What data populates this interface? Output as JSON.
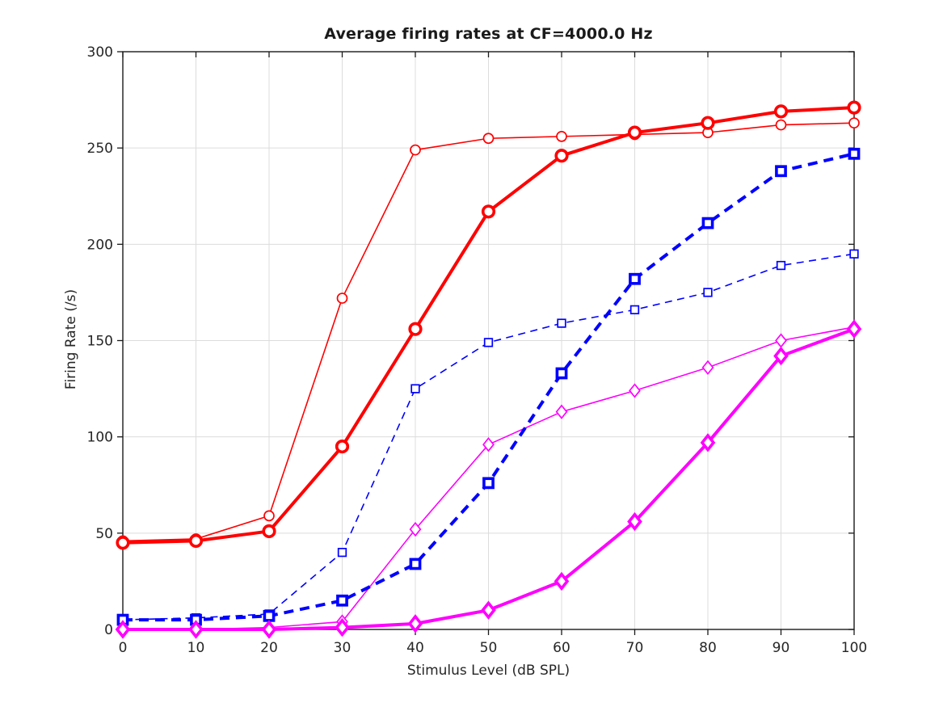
{
  "figure": {
    "title": "Average firing rates at CF=4000.0 Hz",
    "xlabel": "Stimulus Level (dB SPL)",
    "ylabel": "Firing Rate (/s)"
  },
  "chart_data": {
    "type": "line",
    "title": "Average firing rates at CF=4000.0 Hz",
    "xlabel": "Stimulus Level (dB SPL)",
    "ylabel": "Firing Rate (/s)",
    "x": [
      0,
      10,
      20,
      30,
      40,
      50,
      60,
      70,
      80,
      90,
      100
    ],
    "xlim": [
      0,
      100
    ],
    "ylim": [
      0,
      300
    ],
    "xticks": [
      0,
      10,
      20,
      30,
      40,
      50,
      60,
      70,
      80,
      90,
      100
    ],
    "yticks": [
      0,
      50,
      100,
      150,
      200,
      250,
      300
    ],
    "grid": true,
    "legend_position": "none",
    "colors": {
      "red": "#ff0000",
      "blue": "#0000ff",
      "magenta": "#ff00ff",
      "grid": "#dcdcdc",
      "axis": "#1a1a1a",
      "text": "#262626"
    },
    "series": [
      {
        "name": "red-thin",
        "color": "#ff0000",
        "line": "solid",
        "line_width": "thin",
        "marker": "circle",
        "values": [
          46,
          47,
          59,
          172,
          249,
          255,
          256,
          257,
          258,
          262,
          263
        ]
      },
      {
        "name": "blue-thin",
        "color": "#0000ff",
        "line": "dashed",
        "line_width": "thin",
        "marker": "square",
        "values": [
          5,
          6,
          8,
          40,
          125,
          149,
          159,
          166,
          175,
          189,
          195
        ]
      },
      {
        "name": "magenta-thin",
        "color": "#ff00ff",
        "line": "solid",
        "line_width": "thin",
        "marker": "diamond",
        "values": [
          0,
          0,
          1,
          4,
          52,
          96,
          113,
          124,
          136,
          150,
          157
        ]
      },
      {
        "name": "red-thick",
        "color": "#ff0000",
        "line": "solid",
        "line_width": "thick",
        "marker": "circle",
        "values": [
          45,
          46,
          51,
          95,
          156,
          217,
          246,
          258,
          263,
          269,
          271
        ]
      },
      {
        "name": "blue-thick",
        "color": "#0000ff",
        "line": "dashed",
        "line_width": "thick",
        "marker": "square",
        "values": [
          5,
          5,
          7,
          15,
          34,
          76,
          133,
          182,
          211,
          238,
          247
        ]
      },
      {
        "name": "magenta-thick",
        "color": "#ff00ff",
        "line": "solid",
        "line_width": "thick",
        "marker": "diamond",
        "values": [
          0,
          0,
          0,
          1,
          3,
          10,
          25,
          56,
          97,
          142,
          156
        ]
      }
    ]
  }
}
